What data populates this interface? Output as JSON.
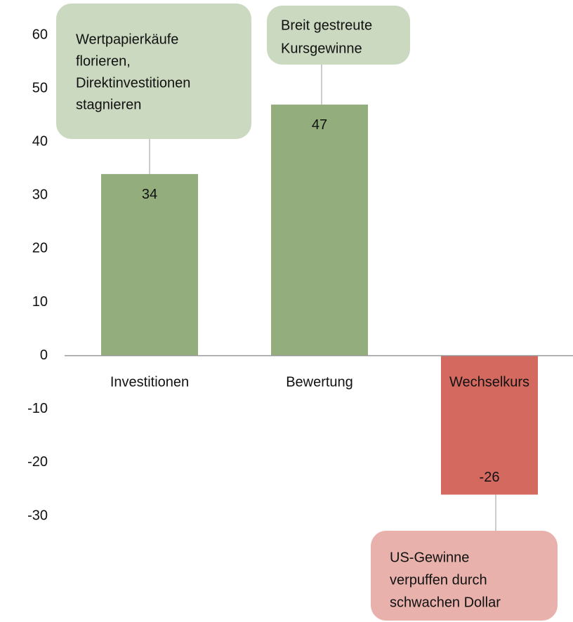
{
  "chart_data": {
    "type": "bar",
    "categories": [
      "Investitionen",
      "Bewertung",
      "Wechselkurs"
    ],
    "values": [
      34,
      47,
      -26
    ],
    "colors": [
      "#93ae7c",
      "#93ae7c",
      "#d4695f"
    ],
    "ylim": [
      -30,
      60
    ],
    "yticks": [
      -30,
      -20,
      -10,
      0,
      10,
      20,
      30,
      40,
      50,
      60
    ],
    "grid": false,
    "annotations": [
      {
        "lines": [
          "Wertpapierkäufe",
          "florieren,",
          "Direktinvestitionen",
          "stagnieren"
        ],
        "color": "#cbd9c0"
      },
      {
        "lines": [
          "Breit gestreute",
          "Kursgewinne"
        ],
        "color": "#cbd9c0"
      },
      {
        "lines": [
          "US-Gewinne",
          "verpuffen durch",
          "schwachen Dollar"
        ],
        "color": "#e8b1ac"
      }
    ]
  }
}
